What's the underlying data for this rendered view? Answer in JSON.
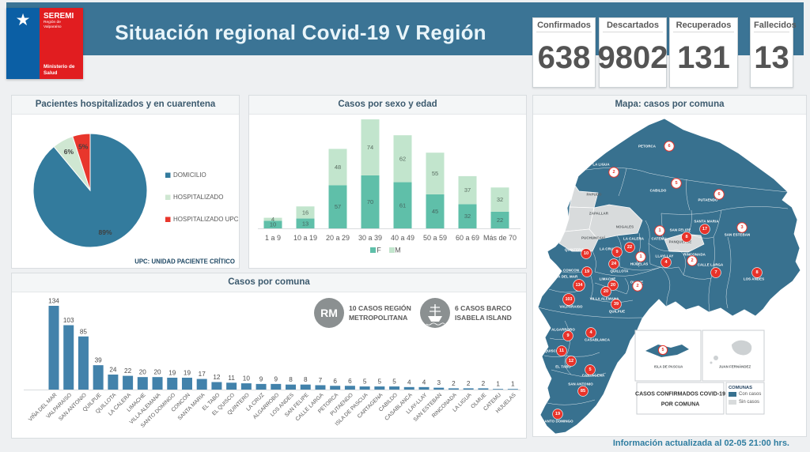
{
  "header": {
    "logo": {
      "seremi": "SEREMI",
      "region": "Región de Valparaíso",
      "ministry": "Ministerio de\nSalud"
    },
    "title": "Situación regional Covid-19 V Región",
    "stats": [
      {
        "label": "Confirmados",
        "value": "638"
      },
      {
        "label": "Descartados",
        "value": "9802"
      },
      {
        "label": "Recuperados",
        "value": "131"
      },
      {
        "label": "Fallecidos",
        "value": "13"
      }
    ]
  },
  "chart_data": [
    {
      "id": "hospitalized_pie",
      "type": "pie",
      "title": "Pacientes hospitalizados  y en cuarentena",
      "labels": [
        "DOMICILIO",
        "HOSPITALIZADO",
        "HOSPITALIZADO UPC"
      ],
      "values": [
        89,
        6,
        5
      ],
      "unit": "percent",
      "slice_labels": [
        "89%",
        "6%",
        "5%"
      ],
      "colors": [
        "#337b9d",
        "#cfe7d2",
        "#e8362c"
      ],
      "legend_position": "right",
      "footnote": "UPC: UNIDAD PACIENTE CRÍTICO"
    },
    {
      "id": "age_sex_stacked_bar",
      "type": "bar",
      "stacked": true,
      "title": "Casos por sexo y edad",
      "categories": [
        "1 a 9",
        "10 a 19",
        "20 a 29",
        "30 a 39",
        "40 a 49",
        "50 a 59",
        "60 a 69",
        "Más de 70"
      ],
      "series": [
        {
          "name": "F",
          "color": "#5fbfa9",
          "values": [
            10,
            13,
            57,
            70,
            61,
            45,
            32,
            22
          ]
        },
        {
          "name": "M",
          "color": "#c2e5cd",
          "values": [
            4,
            16,
            48,
            74,
            62,
            55,
            37,
            32
          ]
        }
      ],
      "legend_position": "bottom"
    },
    {
      "id": "comuna_bar",
      "type": "bar",
      "title": "Casos por comuna",
      "categories": [
        "VIÑA DEL MAR",
        "VALPARAISO",
        "SAN ANTONIO",
        "QUILPUE",
        "QUILLOTA",
        "LA CALERA",
        "LIMACHE",
        "VILLA ALEMANA",
        "SANTO DOMINGO",
        "CONCON",
        "SANTA MARIA",
        "EL TABO",
        "EL QUISCO",
        "QUINTERO",
        "LA CRUZ",
        "ALGARROBO",
        "LOS ANDES",
        "SAN FELIPE",
        "CALLE LARGA",
        "PETORCA",
        "PUTAENDO",
        "ISLA DE PASCUA",
        "CARTAGENA",
        "CABILDO",
        "CASABLANCA",
        "LLAY-LLAY",
        "SAN ESTEBAN",
        "RINCONADA",
        "LA LIGUA",
        "OLMUE",
        "CATEMU",
        "HIJUELAS"
      ],
      "values": [
        134,
        103,
        85,
        39,
        24,
        22,
        20,
        20,
        19,
        19,
        17,
        12,
        11,
        10,
        9,
        9,
        8,
        8,
        7,
        6,
        6,
        5,
        5,
        5,
        4,
        4,
        3,
        2,
        2,
        2,
        1,
        1
      ],
      "color": "#4282ab",
      "annotations": [
        {
          "icon": "RM",
          "line1": "10 CASOS REGIÓN",
          "line2": "METROPOLITANA"
        },
        {
          "icon": "ship",
          "line1": "6 CASOS BARCO",
          "line2": "ISABELA ISLAND"
        }
      ]
    }
  ],
  "map": {
    "title": "Mapa: casos por comuna",
    "with_color": "#38718f",
    "without_color": "#d8dbdc",
    "comunas": [
      {
        "name": "PETORCA",
        "value": 6,
        "style": "outline",
        "label": [
          818,
          185
        ],
        "badge": [
          846,
          185
        ]
      },
      {
        "name": "LA LIGUA",
        "value": 2,
        "style": "outline",
        "label": [
          760,
          208
        ],
        "badge": [
          776,
          218
        ]
      },
      {
        "name": "CABILDO",
        "value": 5,
        "style": "outline",
        "label": [
          832,
          241
        ],
        "badge": [
          855,
          232
        ]
      },
      {
        "name": "PUTAENDO",
        "value": 6,
        "style": "outline",
        "label": [
          895,
          253
        ],
        "badge": [
          909,
          246
        ]
      },
      {
        "name": "SANTA MARIA",
        "value": 17,
        "style": "solid",
        "label": [
          893,
          280
        ],
        "badge": [
          891,
          290
        ]
      },
      {
        "name": "SAN FELIPE",
        "value": 8,
        "style": "solid",
        "label": [
          860,
          291
        ],
        "badge": [
          868,
          300
        ]
      },
      {
        "name": "SAN ESTEBAN",
        "value": 3,
        "style": "outline",
        "label": [
          932,
          297
        ],
        "badge": [
          938,
          288
        ]
      },
      {
        "name": "CATEMU",
        "value": 1,
        "style": "outline",
        "label": [
          833,
          302
        ],
        "badge": [
          834,
          292
        ]
      },
      {
        "name": "LA CALERA",
        "value": 22,
        "style": "solid",
        "label": [
          801,
          302
        ],
        "badge": [
          796,
          313
        ]
      },
      {
        "name": "QUINTERO",
        "value": 10,
        "style": "solid",
        "label": [
          726,
          316
        ],
        "badge": [
          741,
          321
        ]
      },
      {
        "name": "LA CRUZ",
        "value": 9,
        "style": "solid",
        "label": [
          768,
          315
        ],
        "badge": [
          780,
          319
        ]
      },
      {
        "name": "LLAYLLAY",
        "value": 4,
        "style": "solid",
        "label": [
          840,
          324
        ],
        "badge": [
          842,
          332
        ]
      },
      {
        "name": "RINCONADA",
        "value": 2,
        "style": "outline",
        "label": [
          878,
          322
        ],
        "badge": [
          875,
          330
        ]
      },
      {
        "name": "HIJUELAS",
        "value": 1,
        "style": "outline",
        "label": [
          808,
          334
        ],
        "badge": [
          810,
          325
        ]
      },
      {
        "name": "CALLE LARGA",
        "value": 7,
        "style": "solid",
        "label": [
          898,
          335
        ],
        "badge": [
          905,
          345
        ]
      },
      {
        "name": "QUILLOTA",
        "value": 24,
        "style": "solid",
        "label": [
          783,
          343
        ],
        "badge": [
          776,
          334
        ]
      },
      {
        "name": "CONCON",
        "value": 19,
        "style": "solid",
        "label": [
          722,
          342
        ],
        "badge": [
          742,
          344
        ]
      },
      {
        "name": "VIÑA DEL MAR",
        "value": 134,
        "style": "solid",
        "label": [
          714,
          350
        ],
        "badge": [
          732,
          361
        ]
      },
      {
        "name": "LIMACHE",
        "value": 20,
        "style": "solid",
        "label": [
          768,
          353
        ],
        "badge": [
          775,
          361
        ]
      },
      {
        "name": "OLMUE",
        "value": 2,
        "style": "outline",
        "label": [
          805,
          357
        ],
        "badge": [
          806,
          362
        ]
      },
      {
        "name": "VILLA ALEMANA",
        "value": 20,
        "style": "solid",
        "label": [
          764,
          378
        ],
        "badge": [
          766,
          369
        ]
      },
      {
        "name": "VALPARAISO",
        "value": 103,
        "style": "solid",
        "label": [
          722,
          388
        ],
        "badge": [
          719,
          379
        ]
      },
      {
        "name": "QUILPUE",
        "value": 39,
        "style": "solid",
        "label": [
          780,
          394
        ],
        "badge": [
          779,
          385
        ]
      },
      {
        "name": "LOS ANDES",
        "value": 8,
        "style": "solid",
        "label": [
          953,
          353
        ],
        "badge": [
          957,
          345
        ]
      },
      {
        "name": "ALGARROBO",
        "value": 9,
        "style": "solid",
        "label": [
          712,
          417
        ],
        "badge": [
          718,
          425
        ]
      },
      {
        "name": "CASABLANCA",
        "value": 4,
        "style": "solid",
        "label": [
          755,
          430
        ],
        "badge": [
          747,
          421
        ]
      },
      {
        "name": "EL QUISCO",
        "value": 11,
        "style": "solid",
        "label": [
          694,
          444
        ],
        "badge": [
          710,
          444
        ]
      },
      {
        "name": "EL TABO",
        "value": 12,
        "style": "solid",
        "label": [
          712,
          464
        ],
        "badge": [
          722,
          457
        ]
      },
      {
        "name": "CARTAGENA",
        "value": 5,
        "style": "solid",
        "label": [
          750,
          475
        ],
        "badge": [
          746,
          468
        ]
      },
      {
        "name": "SAN ANTONIO",
        "value": 85,
        "style": "solid",
        "label": [
          734,
          486
        ],
        "badge": [
          737,
          495
        ]
      },
      {
        "name": "SANTO DOMINGO",
        "value": 19,
        "style": "solid",
        "label": [
          705,
          533
        ],
        "badge": [
          705,
          524
        ]
      }
    ],
    "no_cases": [
      {
        "name": "PAPUDO",
        "label": [
          751,
          246
        ]
      },
      {
        "name": "ZAPALLAR",
        "label": [
          757,
          270
        ]
      },
      {
        "name": "NOGALES",
        "label": [
          790,
          287
        ]
      },
      {
        "name": "PUCHUNCAVÍ",
        "label": [
          750,
          301
        ]
      },
      {
        "name": "PANQUEHUE",
        "label": [
          860,
          306
        ]
      }
    ],
    "insets": [
      {
        "name": "ISLA DE PASCUA",
        "value": 5,
        "style": "outline"
      },
      {
        "name": "JUAN FERNÁNDEZ"
      }
    ],
    "legend_box": {
      "line1": "CASOS CONFIRMADOS COVID-19",
      "line2": "POR COMUNA"
    },
    "legend": {
      "heading": "COMUNAS",
      "with_cases": "Con casos",
      "without_cases": "Sin casos"
    }
  },
  "footer": {
    "updated": "Información actualizada al 02-05 21:00 hrs."
  }
}
